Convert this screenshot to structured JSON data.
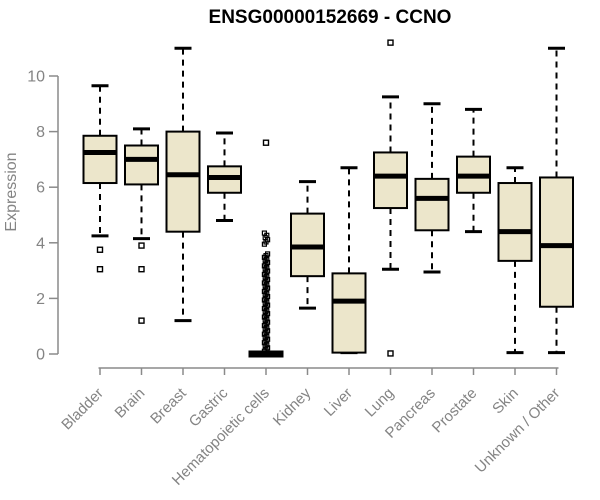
{
  "colors": {
    "background": "#FFFFFF",
    "box_fill": "#ECE6CB",
    "box_border": "#000000",
    "median": "#000000",
    "axis": "#8A8A8A",
    "text_gray": "#848484",
    "title": "#000000"
  },
  "chart_data": {
    "type": "boxplot",
    "title": "ENSG00000152669 - CCNO",
    "ylabel": "Expression",
    "xlabel": "",
    "y_axis": {
      "ticks": [
        0,
        2,
        4,
        6,
        8,
        10
      ],
      "range": [
        0,
        11.4
      ]
    },
    "grid": false,
    "legend": false,
    "x_label_rotation_deg": 45,
    "categories": [
      "Bladder",
      "Brain",
      "Breast",
      "Gastric",
      "Hematopoietic cells",
      "Kidney",
      "Liver",
      "Lung",
      "Pancreas",
      "Prostate",
      "Skin",
      "Unknown / Other"
    ],
    "boxes": [
      {
        "category": "Bladder",
        "whisker_low": 4.25,
        "q1": 6.15,
        "median": 7.25,
        "q3": 7.85,
        "whisker_high": 9.65,
        "outliers": [
          3.75,
          3.05
        ]
      },
      {
        "category": "Brain",
        "whisker_low": 4.15,
        "q1": 6.1,
        "median": 7.0,
        "q3": 7.5,
        "whisker_high": 8.1,
        "outliers": [
          3.9,
          3.05,
          1.2
        ]
      },
      {
        "category": "Breast",
        "whisker_low": 1.2,
        "q1": 4.4,
        "median": 6.45,
        "q3": 8.0,
        "whisker_high": 11.0,
        "outliers": []
      },
      {
        "category": "Gastric",
        "whisker_low": 4.8,
        "q1": 5.8,
        "median": 6.35,
        "q3": 6.75,
        "whisker_high": 7.95,
        "outliers": []
      },
      {
        "category": "Hematopoietic cells",
        "collapsed": true,
        "whisker_low": 0,
        "q1": 0,
        "median": 0,
        "q3": 0,
        "whisker_high": 0,
        "outliers": [
          7.6
        ],
        "outlier_strips": [
          {
            "min": 3.95,
            "max": 4.35,
            "count": 6
          },
          {
            "min": 0.1,
            "max": 3.6,
            "count": 58
          }
        ]
      },
      {
        "category": "Kidney",
        "whisker_low": 1.65,
        "q1": 2.8,
        "median": 3.85,
        "q3": 5.05,
        "whisker_high": 6.2,
        "outliers": []
      },
      {
        "category": "Liver",
        "whisker_low": 0.05,
        "q1": 0.05,
        "median": 1.9,
        "q3": 2.9,
        "whisker_high": 6.7,
        "outliers": []
      },
      {
        "category": "Lung",
        "whisker_low": 3.05,
        "q1": 5.25,
        "median": 6.4,
        "q3": 7.25,
        "whisker_high": 9.25,
        "outliers": [
          11.2,
          0.02
        ]
      },
      {
        "category": "Pancreas",
        "whisker_low": 2.95,
        "q1": 4.45,
        "median": 5.6,
        "q3": 6.3,
        "whisker_high": 9.0,
        "outliers": []
      },
      {
        "category": "Prostate",
        "whisker_low": 4.4,
        "q1": 5.8,
        "median": 6.4,
        "q3": 7.1,
        "whisker_high": 8.8,
        "outliers": []
      },
      {
        "category": "Skin",
        "whisker_low": 0.05,
        "q1": 3.35,
        "median": 4.4,
        "q3": 6.15,
        "whisker_high": 6.7,
        "outliers": []
      },
      {
        "category": "Unknown / Other",
        "whisker_low": 0.05,
        "q1": 1.7,
        "median": 3.9,
        "q3": 6.35,
        "whisker_high": 11.0,
        "outliers": []
      }
    ]
  }
}
